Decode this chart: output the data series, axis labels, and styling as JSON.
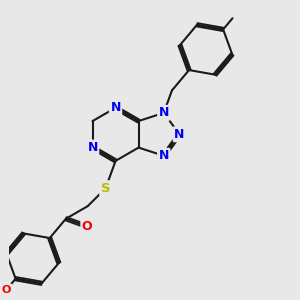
{
  "bg_color": "#e8e8e8",
  "atom_colors": {
    "C": "#1a1a1a",
    "N": "#0000ee",
    "O": "#ee0000",
    "S": "#bbbb00",
    "H": "#1a1a1a"
  },
  "bond_color": "#1a1a1a",
  "bond_width": 1.5,
  "dbo": 0.06,
  "figsize": [
    3.0,
    3.0
  ],
  "dpi": 100,
  "xlim": [
    0,
    10
  ],
  "ylim": [
    0,
    10
  ]
}
